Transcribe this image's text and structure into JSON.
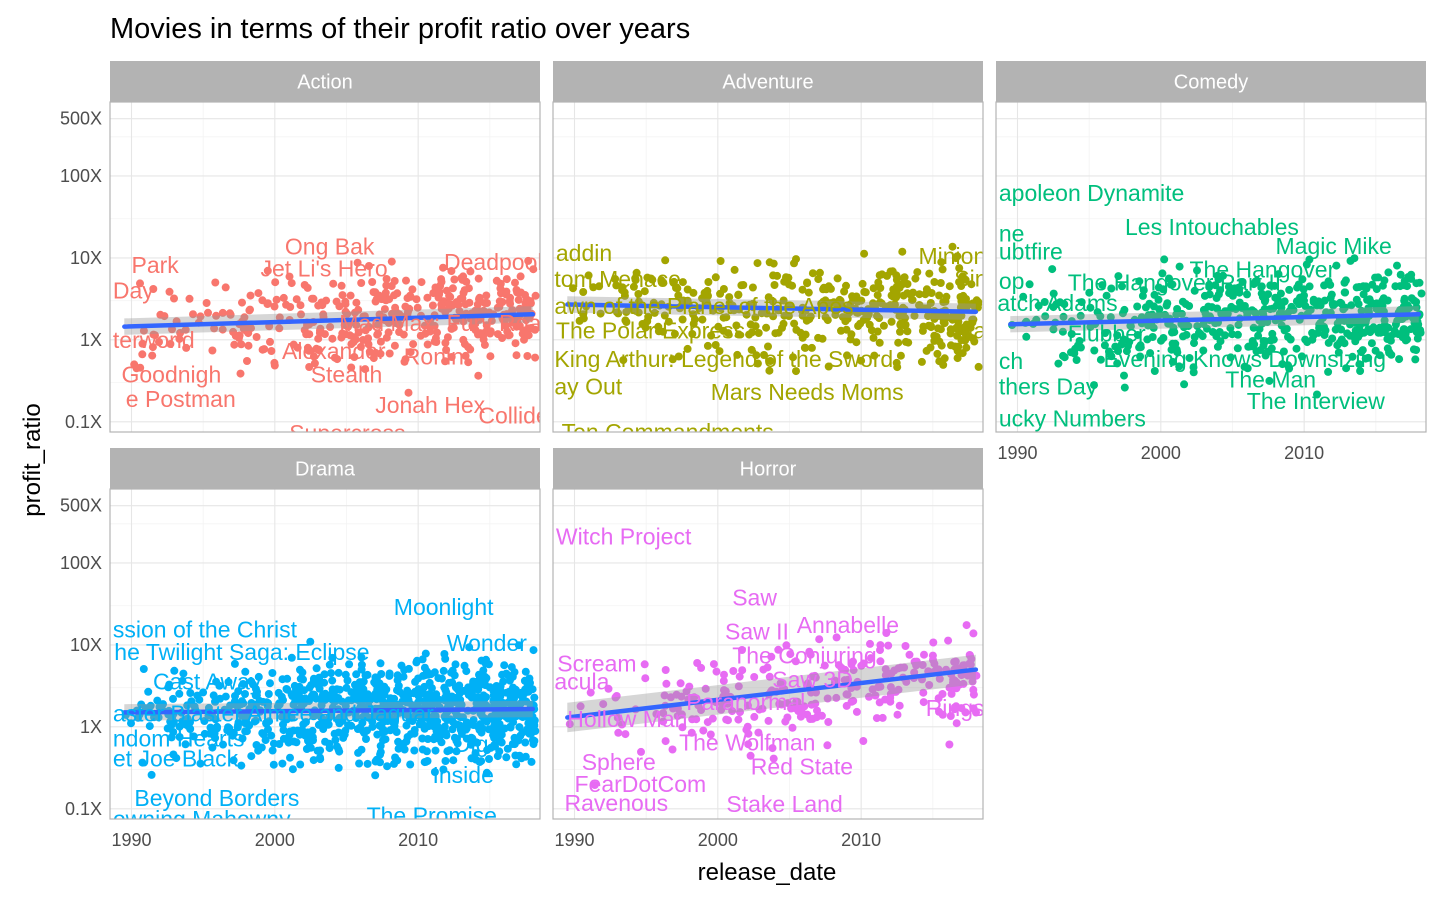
{
  "chart_data": {
    "type": "scatter",
    "title": "Movies in terms of their profit ratio over years",
    "xlabel": "release_date",
    "ylabel": "profit_ratio",
    "y_scale": "log10",
    "xlim": [
      1988.5,
      2018.5
    ],
    "ylim": [
      0.075,
      800
    ],
    "x_ticks": [
      1990,
      2000,
      2010
    ],
    "x_tick_labels": [
      "1990",
      "2000",
      "2010"
    ],
    "y_ticks": [
      0.1,
      1,
      10,
      100,
      500
    ],
    "y_tick_labels": [
      "0.1X",
      "1X",
      "10X",
      "100X",
      "500X"
    ],
    "grid": true,
    "legend": "none",
    "facets": [
      {
        "name": "Action",
        "color": "#f8766d",
        "n_points": 420,
        "trend": [
          [
            1989.5,
            1.45
          ],
          [
            2018,
            2.05
          ]
        ],
        "labels": [
          {
            "text": "Park",
            "x": 1990.0,
            "y": 8.2
          },
          {
            "text": "Ong Bak",
            "x": 2000.7,
            "y": 13.8
          },
          {
            "text": "Jet Li's Hero",
            "x": 1999.0,
            "y": 7.4
          },
          {
            "text": "Deadpool",
            "x": 2011.8,
            "y": 8.9
          },
          {
            "text": "Day",
            "x": 1988.7,
            "y": 4.0
          },
          {
            "text": "terworld",
            "x": 1988.7,
            "y": 1.0
          },
          {
            "text": "Mad Max: Fury Road",
            "x": 2004.5,
            "y": 1.6
          },
          {
            "text": "Alexander",
            "x": 2000.5,
            "y": 0.73
          },
          {
            "text": "Ronin",
            "x": 2009.0,
            "y": 0.63
          },
          {
            "text": "Goodnigh",
            "x": 1989.3,
            "y": 0.38
          },
          {
            "text": "Stealth",
            "x": 2002.5,
            "y": 0.38
          },
          {
            "text": "e Postman",
            "x": 1989.6,
            "y": 0.19
          },
          {
            "text": "Jonah Hex",
            "x": 2007.0,
            "y": 0.16
          },
          {
            "text": "Collide",
            "x": 2014.2,
            "y": 0.12
          },
          {
            "text": "Supercross",
            "x": 2001.0,
            "y": 0.073
          }
        ]
      },
      {
        "name": "Adventure",
        "color": "#a3a500",
        "n_points": 430,
        "trend": [
          [
            1989.5,
            2.7
          ],
          [
            2018,
            2.2
          ]
        ],
        "labels": [
          {
            "text": "addin",
            "x": 1988.7,
            "y": 11.5
          },
          {
            "text": "Minions",
            "x": 2014.0,
            "y": 10.5
          },
          {
            "text": "tom Menace",
            "x": 1988.6,
            "y": 5.5
          },
          {
            "text": "Sing",
            "x": 2016.5,
            "y": 5.6
          },
          {
            "text": "awn of the Planet of the Apes",
            "x": 1988.6,
            "y": 2.6
          },
          {
            "text": "The Polar Express",
            "x": 1988.7,
            "y": 1.3
          },
          {
            "text": "Max",
            "x": 2016.5,
            "y": 1.3
          },
          {
            "text": "King Arthur: Legend of the Sword",
            "x": 1988.6,
            "y": 0.58
          },
          {
            "text": "ay Out",
            "x": 1988.6,
            "y": 0.27
          },
          {
            "text": "Mars Needs Moms",
            "x": 1999.5,
            "y": 0.23
          },
          {
            "text": "Ten Commandments",
            "x": 1989.1,
            "y": 0.075
          }
        ]
      },
      {
        "name": "Comedy",
        "color": "#00bf7d",
        "n_points": 520,
        "trend": [
          [
            1989.5,
            1.55
          ],
          [
            2018,
            2.05
          ]
        ],
        "labels": [
          {
            "text": "apoleon Dynamite",
            "x": 1988.7,
            "y": 62
          },
          {
            "text": "Les Intouchables",
            "x": 1997.5,
            "y": 24
          },
          {
            "text": "ne",
            "x": 1988.7,
            "y": 20
          },
          {
            "text": "Magic Mike",
            "x": 2008.0,
            "y": 14
          },
          {
            "text": "ubtfire",
            "x": 1988.7,
            "y": 12
          },
          {
            "text": "The Hangover",
            "x": 2002.0,
            "y": 7.2
          },
          {
            "text": "op",
            "x": 1988.7,
            "y": 5.2
          },
          {
            "text": "The Hangover Part II",
            "x": 1993.5,
            "y": 5.0
          },
          {
            "text": "atch Adams",
            "x": 1988.6,
            "y": 2.8
          },
          {
            "text": "Flubber",
            "x": 1993.5,
            "y": 1.2
          },
          {
            "text": "ch",
            "x": 1988.7,
            "y": 0.55
          },
          {
            "text": "Evening Knows Downsizing",
            "x": 1996.0,
            "y": 0.58
          },
          {
            "text": "thers Day",
            "x": 1988.7,
            "y": 0.27
          },
          {
            "text": "The Man",
            "x": 2004.5,
            "y": 0.33
          },
          {
            "text": "The Interview",
            "x": 2006.0,
            "y": 0.18
          },
          {
            "text": "ucky Numbers",
            "x": 1988.7,
            "y": 0.11
          }
        ]
      },
      {
        "name": "Drama",
        "color": "#00b0f6",
        "n_points": 900,
        "trend": [
          [
            1989.5,
            1.5
          ],
          [
            2018,
            1.65
          ]
        ],
        "labels": [
          {
            "text": "Moonlight",
            "x": 2008.3,
            "y": 29
          },
          {
            "text": "ssion of the Christ",
            "x": 1988.7,
            "y": 15.5
          },
          {
            "text": "Wonder",
            "x": 2012.0,
            "y": 10.6
          },
          {
            "text": "he Twilight Saga: Eclipse",
            "x": 1988.8,
            "y": 8.2
          },
          {
            "text": "Cast Away",
            "x": 1991.5,
            "y": 3.6
          },
          {
            "text": "aster Blaster Aimee and Jaguar",
            "x": 1988.7,
            "y": 1.45
          },
          {
            "text": "ndom Hearts",
            "x": 1988.7,
            "y": 0.72
          },
          {
            "text": "Dig",
            "x": 2012.5,
            "y": 0.62
          },
          {
            "text": "et Joe Black",
            "x": 1988.7,
            "y": 0.41
          },
          {
            "text": "Inside",
            "x": 2011.0,
            "y": 0.26
          },
          {
            "text": "Beyond Borders",
            "x": 1990.2,
            "y": 0.135
          },
          {
            "text": "The Promise",
            "x": 2006.4,
            "y": 0.083
          },
          {
            "text": "owning Mahowny",
            "x": 1988.7,
            "y": 0.075
          }
        ]
      },
      {
        "name": "Horror",
        "color": "#e76bf3",
        "n_points": 270,
        "trend": [
          [
            1989.5,
            1.3
          ],
          [
            2018,
            5.0
          ]
        ],
        "labels": [
          {
            "text": "Witch Project",
            "x": 1988.7,
            "y": 210
          },
          {
            "text": "Saw",
            "x": 2001.0,
            "y": 38
          },
          {
            "text": "Saw II",
            "x": 2000.5,
            "y": 14.5
          },
          {
            "text": "Annabelle",
            "x": 2005.5,
            "y": 17.5
          },
          {
            "text": "The Conjuring",
            "x": 2001.0,
            "y": 7.4
          },
          {
            "text": "Scream",
            "x": 1988.8,
            "y": 5.9
          },
          {
            "text": "Saw 3D",
            "x": 2003.8,
            "y": 3.8
          },
          {
            "text": "acula",
            "x": 1988.6,
            "y": 3.6
          },
          {
            "text": "Paranormal",
            "x": 1997.8,
            "y": 2.0
          },
          {
            "text": "Rings",
            "x": 2014.5,
            "y": 1.7
          },
          {
            "text": "Hollow Man",
            "x": 1989.5,
            "y": 1.25
          },
          {
            "text": "The Wolfman",
            "x": 1997.3,
            "y": 0.64
          },
          {
            "text": "Sphere",
            "x": 1990.5,
            "y": 0.37
          },
          {
            "text": "Red State",
            "x": 2002.3,
            "y": 0.33
          },
          {
            "text": "FearDotCom",
            "x": 1990.0,
            "y": 0.2
          },
          {
            "text": "Ravenous",
            "x": 1989.3,
            "y": 0.118
          },
          {
            "text": "Stake Land",
            "x": 2000.6,
            "y": 0.115
          }
        ]
      }
    ]
  }
}
